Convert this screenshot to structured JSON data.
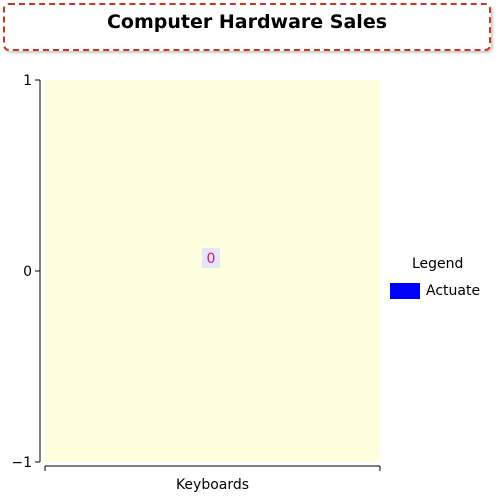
{
  "chart_data": {
    "type": "bar",
    "title": "Computer Hardware Sales",
    "categories": [
      "Keyboards"
    ],
    "series": [
      {
        "name": "Actuate",
        "values": [
          0
        ],
        "color": "#0000ff"
      }
    ],
    "ylim": [
      -1,
      1
    ],
    "yticks": [
      "1",
      "0",
      "-1"
    ],
    "data_labels": [
      "0"
    ],
    "legend": {
      "title": "Legend",
      "placement": "right"
    },
    "plot_background": "#ffffe0",
    "title_border_color": "#c8361b"
  }
}
